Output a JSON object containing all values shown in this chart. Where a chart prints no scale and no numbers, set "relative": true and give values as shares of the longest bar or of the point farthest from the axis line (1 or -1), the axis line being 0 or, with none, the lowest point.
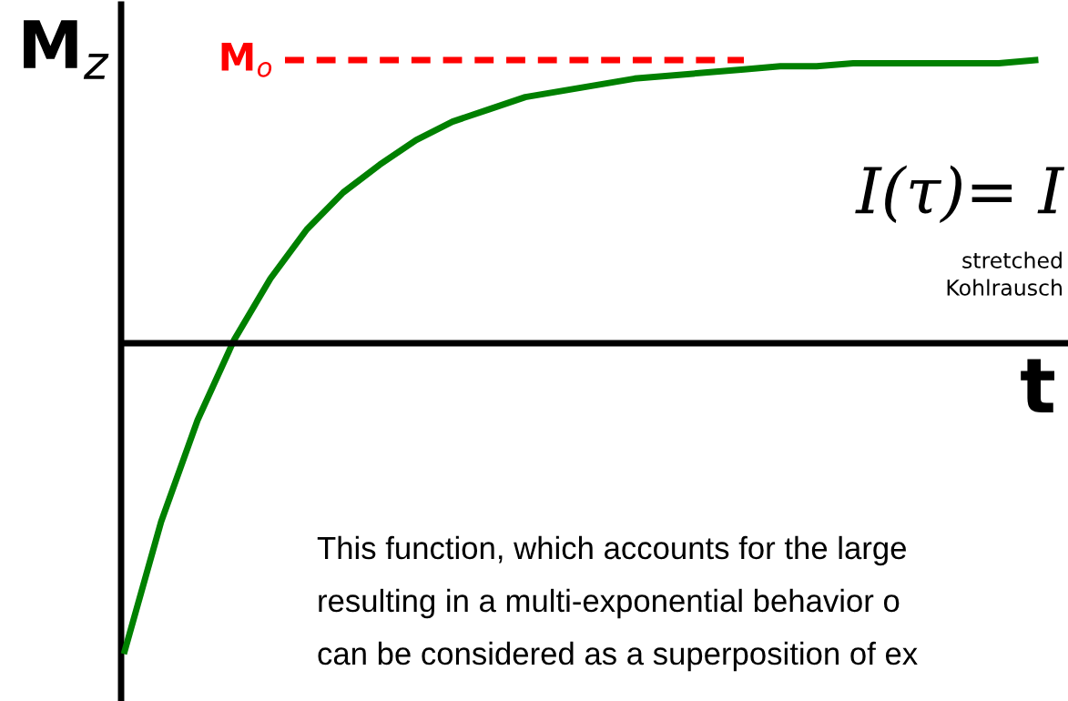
{
  "chart_data": {
    "type": "line",
    "relative": true,
    "xlabel": "t",
    "ylabel": "M$_{z}$",
    "categories": [
      null,
      null,
      null,
      null,
      null,
      null,
      null,
      null,
      null,
      null,
      null,
      null,
      null,
      null,
      null,
      null,
      null,
      null,
      null,
      null,
      null,
      null,
      null,
      null,
      null,
      null
    ],
    "series": [
      {
        "color": "#008000",
        "values": [
          -1.0,
          -0.58,
          -0.25,
          0.01,
          0.21,
          0.37,
          0.49,
          0.58,
          0.66,
          0.72,
          0.76,
          0.8,
          0.82,
          0.84,
          0.86,
          0.87,
          0.88,
          0.89,
          0.9,
          0.9,
          0.91,
          0.91,
          0.91,
          0.91,
          0.91,
          0.92
        ]
      }
    ],
    "ref_lines": [
      {
        "axis": "y",
        "value": 0.92,
        "label": "M$_{o}$",
        "color": "#ff0000",
        "line_style": "dashed"
      }
    ],
    "annotations": [
      "I(τ)= I",
      "stretched",
      "Kohlrausch",
      "This function, which accounts for the large",
      "resulting in a multi-exponential behavior o",
      "can be considered as a superposition of ex"
    ],
    "marker": "none",
    "line_style": "solid"
  }
}
